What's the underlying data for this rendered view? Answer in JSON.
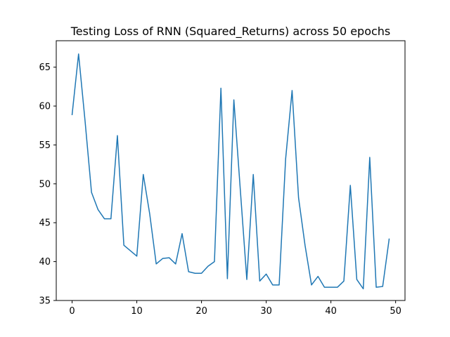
{
  "chart_data": {
    "type": "line",
    "title": "Testing Loss of RNN (Squared_Returns) across 50 epochs",
    "xlabel": "",
    "ylabel": "",
    "xlim": [
      -2.45,
      51.45
    ],
    "ylim": [
      35,
      68.4
    ],
    "xticks": [
      0,
      10,
      20,
      30,
      40,
      50
    ],
    "yticks": [
      35,
      40,
      45,
      50,
      55,
      60,
      65
    ],
    "grid": false,
    "legend": "none",
    "series": [
      {
        "color": "#1f77b4",
        "x": [
          0,
          1,
          2,
          3,
          4,
          5,
          6,
          7,
          8,
          9,
          10,
          11,
          12,
          13,
          14,
          15,
          16,
          17,
          18,
          19,
          20,
          21,
          22,
          23,
          24,
          25,
          26,
          27,
          28,
          29,
          30,
          31,
          32,
          33,
          34,
          35,
          36,
          37,
          38,
          39,
          40,
          41,
          42,
          43,
          44,
          45,
          46,
          47,
          48,
          49
        ],
        "values": [
          58.9,
          66.7,
          58.1,
          48.9,
          46.7,
          45.5,
          45.5,
          56.2,
          42.1,
          41.4,
          40.7,
          51.2,
          46.1,
          39.7,
          40.4,
          40.5,
          39.7,
          43.6,
          38.7,
          38.5,
          38.5,
          39.4,
          40.0,
          62.3,
          37.8,
          60.8,
          49.2,
          37.7,
          51.2,
          37.5,
          38.4,
          37.0,
          37.0,
          53.2,
          62.0,
          48.2,
          42.1,
          37.0,
          38.1,
          36.7,
          36.7,
          36.7,
          37.5,
          49.8,
          37.7,
          36.5,
          53.4,
          36.7,
          36.8,
          42.9
        ]
      }
    ]
  }
}
